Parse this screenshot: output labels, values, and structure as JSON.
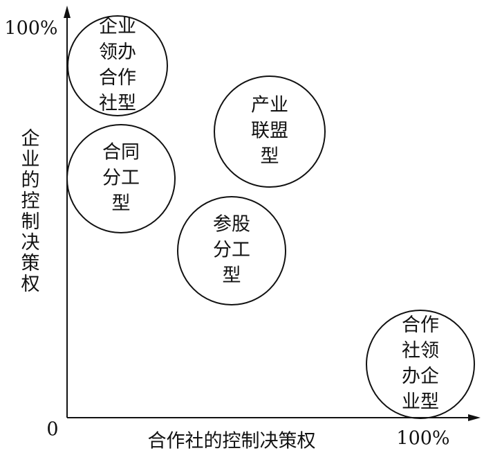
{
  "axes": {
    "y_label": "企业的控制决策权",
    "x_label": "合作社的控制决策权",
    "y_max": "100%",
    "x_max": "100%",
    "origin": "0"
  },
  "nodes": [
    {
      "lines": [
        "企业",
        "领办",
        "合作",
        "社型"
      ]
    },
    {
      "lines": [
        "合同",
        "分工",
        "型"
      ]
    },
    {
      "lines": [
        "产业",
        "联盟",
        "型"
      ]
    },
    {
      "lines": [
        "参股",
        "分工",
        "型"
      ]
    },
    {
      "lines": [
        "合作",
        "社领",
        "办企",
        "业型"
      ]
    }
  ]
}
